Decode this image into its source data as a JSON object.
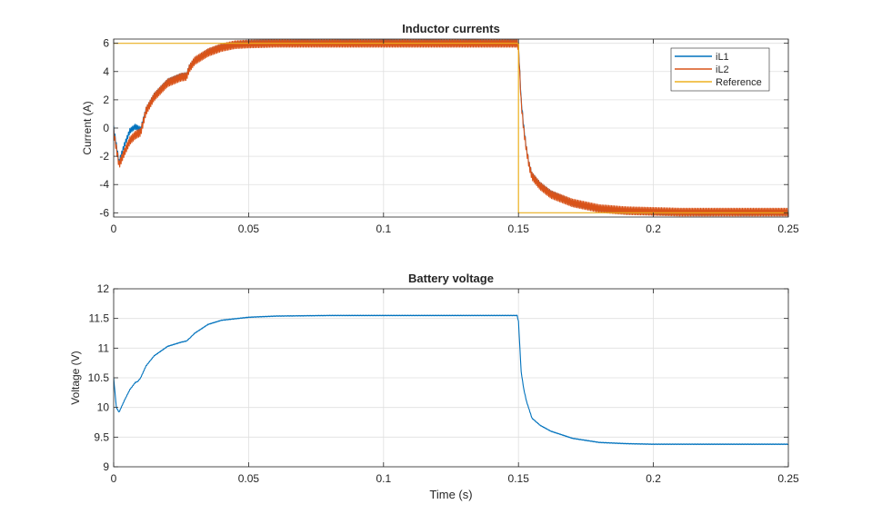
{
  "colors": {
    "background": "#ffffff",
    "axes_face": "#ffffff",
    "axis_line": "#262626",
    "grid": "#dfdfdf",
    "text": "#262626",
    "series_1": "#0072BD",
    "series_2": "#D95319",
    "series_3": "#EDB120"
  },
  "chart_data": [
    {
      "type": "line",
      "title": "Inductor currents",
      "xlabel": "",
      "ylabel": "Current (A)",
      "xlim": [
        0,
        0.25
      ],
      "ylim": [
        -6.3,
        6.3
      ],
      "xticks": [
        0,
        0.05,
        0.1,
        0.15,
        0.2,
        0.25
      ],
      "xtick_labels": [
        "0",
        "0.05",
        "0.1",
        "0.15",
        "0.2",
        "0.25"
      ],
      "yticks": [
        -6,
        -4,
        -2,
        0,
        2,
        4,
        6
      ],
      "ytick_labels": [
        "-6",
        "-4",
        "-2",
        "0",
        "2",
        "4",
        "6"
      ],
      "grid": true,
      "legend_position": "top-right",
      "series": [
        {
          "name": "iL1",
          "color": "#0072BD",
          "ripple": 0.35,
          "x": [
            0,
            0.002,
            0.004,
            0.006,
            0.008,
            0.009,
            0.01,
            0.012,
            0.015,
            0.02,
            0.025,
            0.027,
            0.028,
            0.03,
            0.035,
            0.04,
            0.045,
            0.05,
            0.06,
            0.07,
            0.08,
            0.1,
            0.12,
            0.14,
            0.1495,
            0.15,
            0.151,
            0.152,
            0.153,
            0.154,
            0.155,
            0.158,
            0.162,
            0.17,
            0.18,
            0.19,
            0.2,
            0.21,
            0.22,
            0.23,
            0.25
          ],
          "y": [
            0,
            -2.4,
            -1.2,
            -0.2,
            0.1,
            0.0,
            -0.1,
            1.3,
            2.3,
            3.3,
            3.7,
            3.75,
            4.3,
            4.8,
            5.4,
            5.75,
            5.95,
            6.05,
            6.1,
            6.1,
            6.1,
            6.1,
            6.1,
            6.1,
            6.1,
            5.8,
            2.0,
            0.0,
            -1.5,
            -2.6,
            -3.3,
            -4.0,
            -4.6,
            -5.3,
            -5.75,
            -5.9,
            -5.95,
            -6.0,
            -6.0,
            -6.0,
            -6.0
          ]
        },
        {
          "name": "iL2",
          "color": "#D95319",
          "ripple": 0.55,
          "x": [
            0,
            0.002,
            0.004,
            0.006,
            0.008,
            0.009,
            0.01,
            0.012,
            0.015,
            0.02,
            0.025,
            0.027,
            0.028,
            0.03,
            0.035,
            0.04,
            0.045,
            0.05,
            0.06,
            0.07,
            0.08,
            0.1,
            0.12,
            0.14,
            0.1495,
            0.15,
            0.151,
            0.152,
            0.153,
            0.154,
            0.155,
            0.158,
            0.162,
            0.17,
            0.18,
            0.19,
            0.2,
            0.21,
            0.22,
            0.23,
            0.25
          ],
          "y": [
            -0.3,
            -2.6,
            -1.7,
            -0.9,
            -0.5,
            -0.4,
            -0.3,
            1.2,
            2.2,
            3.2,
            3.6,
            3.65,
            4.2,
            4.75,
            5.35,
            5.7,
            5.9,
            5.95,
            6.0,
            6.0,
            6.0,
            6.0,
            6.0,
            6.0,
            6.0,
            5.7,
            1.8,
            -0.2,
            -1.6,
            -2.7,
            -3.4,
            -4.1,
            -4.7,
            -5.3,
            -5.7,
            -5.85,
            -5.9,
            -5.95,
            -5.95,
            -5.95,
            -5.95
          ]
        },
        {
          "name": "Reference",
          "color": "#EDB120",
          "ripple": 0,
          "x": [
            0,
            0.15,
            0.15,
            0.25
          ],
          "y": [
            6,
            6,
            -6,
            -6
          ]
        }
      ]
    },
    {
      "type": "line",
      "title": "Battery voltage",
      "xlabel": "Time (s)",
      "ylabel": "Voltage (V)",
      "xlim": [
        0,
        0.25
      ],
      "ylim": [
        9,
        12
      ],
      "xticks": [
        0,
        0.05,
        0.1,
        0.15,
        0.2,
        0.25
      ],
      "xtick_labels": [
        "0",
        "0.05",
        "0.1",
        "0.15",
        "0.2",
        "0.25"
      ],
      "yticks": [
        9,
        9.5,
        10,
        10.5,
        11,
        11.5,
        12
      ],
      "ytick_labels": [
        "9",
        "9.5",
        "10",
        "10.5",
        "11",
        "11.5",
        "12"
      ],
      "grid": true,
      "series": [
        {
          "color": "#0072BD",
          "ripple": 0.01,
          "x": [
            0,
            0.001,
            0.002,
            0.004,
            0.006,
            0.008,
            0.009,
            0.01,
            0.012,
            0.015,
            0.02,
            0.025,
            0.027,
            0.028,
            0.03,
            0.035,
            0.04,
            0.05,
            0.06,
            0.08,
            0.1,
            0.12,
            0.14,
            0.1495,
            0.15,
            0.151,
            0.152,
            0.153,
            0.155,
            0.158,
            0.162,
            0.17,
            0.18,
            0.19,
            0.2,
            0.22,
            0.25
          ],
          "y": [
            10.5,
            10.0,
            9.92,
            10.12,
            10.3,
            10.42,
            10.44,
            10.5,
            10.7,
            10.87,
            11.03,
            11.1,
            11.12,
            11.16,
            11.25,
            11.4,
            11.47,
            11.52,
            11.54,
            11.55,
            11.55,
            11.55,
            11.55,
            11.55,
            11.45,
            10.6,
            10.3,
            10.1,
            9.82,
            9.7,
            9.6,
            9.48,
            9.41,
            9.39,
            9.38,
            9.38,
            9.38
          ]
        }
      ]
    }
  ]
}
